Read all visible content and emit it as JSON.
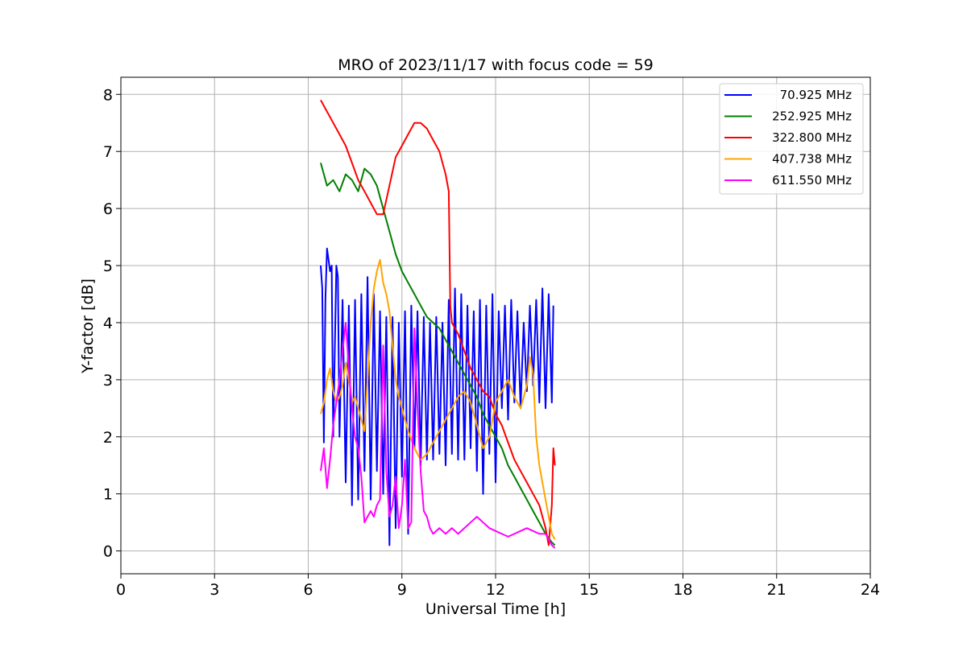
{
  "chart_data": {
    "type": "line",
    "title": "MRO of 2023/11/17 with focus code = 59",
    "xlabel": "Universal Time [h]",
    "ylabel": "Y-factor [dB]",
    "xlim": [
      0,
      24
    ],
    "ylim": [
      -0.4,
      8.3
    ],
    "xticks": [
      0,
      3,
      6,
      9,
      12,
      15,
      18,
      21,
      24
    ],
    "yticks": [
      0,
      1,
      2,
      3,
      4,
      5,
      6,
      7,
      8
    ],
    "grid": true,
    "legend_position": "top-right",
    "series": [
      {
        "name": "70.925 MHz",
        "color": "#0000ff",
        "x": [
          6.4,
          6.45,
          6.5,
          6.55,
          6.6,
          6.65,
          6.7,
          6.75,
          6.8,
          6.9,
          6.95,
          7.0,
          7.1,
          7.2,
          7.3,
          7.4,
          7.5,
          7.6,
          7.7,
          7.8,
          7.9,
          8.0,
          8.1,
          8.2,
          8.3,
          8.4,
          8.5,
          8.6,
          8.7,
          8.8,
          8.9,
          9.0,
          9.1,
          9.2,
          9.3,
          9.4,
          9.5,
          9.6,
          9.7,
          9.8,
          9.9,
          10.0,
          10.1,
          10.2,
          10.3,
          10.4,
          10.5,
          10.6,
          10.7,
          10.8,
          10.9,
          11.0,
          11.1,
          11.2,
          11.3,
          11.4,
          11.5,
          11.6,
          11.7,
          11.8,
          11.9,
          12.0,
          12.1,
          12.2,
          12.3,
          12.4,
          12.5,
          12.6,
          12.7,
          12.8,
          12.9,
          13.0,
          13.1,
          13.2,
          13.3,
          13.4,
          13.5,
          13.6,
          13.7,
          13.8,
          13.85
        ],
        "y": [
          5.0,
          4.6,
          1.9,
          4.4,
          5.3,
          5.1,
          4.9,
          5.0,
          2.0,
          5.0,
          4.8,
          2.0,
          4.4,
          1.2,
          4.3,
          0.8,
          4.4,
          0.9,
          4.5,
          1.4,
          4.8,
          0.9,
          4.5,
          1.4,
          4.2,
          1.0,
          4.1,
          0.1,
          4.1,
          0.4,
          4.0,
          1.3,
          4.2,
          0.3,
          4.3,
          1.8,
          4.2,
          1.5,
          4.1,
          1.6,
          4.0,
          1.6,
          4.1,
          1.7,
          4.0,
          1.5,
          4.4,
          1.7,
          4.6,
          1.6,
          4.5,
          1.6,
          4.3,
          1.8,
          4.2,
          1.4,
          4.4,
          1.0,
          4.3,
          1.7,
          4.5,
          1.2,
          4.2,
          2.5,
          4.3,
          2.3,
          4.4,
          2.6,
          4.2,
          2.5,
          4.0,
          2.8,
          4.3,
          2.9,
          4.4,
          2.6,
          4.6,
          2.5,
          4.5,
          2.6,
          4.3
        ]
      },
      {
        "name": "252.925 MHz",
        "color": "#008000",
        "x": [
          6.4,
          6.6,
          6.8,
          7.0,
          7.2,
          7.4,
          7.6,
          7.8,
          8.0,
          8.2,
          8.4,
          8.6,
          8.8,
          9.0,
          9.2,
          9.4,
          9.6,
          9.8,
          10.0,
          10.2,
          10.4,
          10.6,
          10.8,
          11.0,
          11.2,
          11.4,
          11.6,
          11.8,
          12.0,
          12.2,
          12.4,
          12.6,
          12.8,
          13.0,
          13.2,
          13.4,
          13.6,
          13.8,
          13.9
        ],
        "y": [
          6.8,
          6.4,
          6.5,
          6.3,
          6.6,
          6.5,
          6.3,
          6.7,
          6.6,
          6.4,
          6.0,
          5.6,
          5.2,
          4.9,
          4.7,
          4.5,
          4.3,
          4.1,
          4.0,
          3.9,
          3.7,
          3.5,
          3.3,
          3.1,
          2.9,
          2.7,
          2.4,
          2.2,
          2.0,
          1.8,
          1.5,
          1.3,
          1.1,
          0.9,
          0.7,
          0.5,
          0.3,
          0.15,
          0.1
        ]
      },
      {
        "name": "322.800 MHz",
        "color": "#ff0000",
        "x": [
          6.4,
          6.6,
          6.8,
          7.0,
          7.2,
          7.4,
          7.6,
          7.8,
          8.0,
          8.2,
          8.4,
          8.6,
          8.8,
          9.0,
          9.2,
          9.4,
          9.6,
          9.8,
          10.0,
          10.2,
          10.4,
          10.5,
          10.55,
          10.6,
          10.8,
          11.0,
          11.2,
          11.4,
          11.6,
          11.8,
          12.0,
          12.2,
          12.4,
          12.6,
          12.8,
          13.0,
          13.2,
          13.4,
          13.6,
          13.7,
          13.8,
          13.85,
          13.9
        ],
        "y": [
          7.9,
          7.7,
          7.5,
          7.3,
          7.1,
          6.8,
          6.5,
          6.3,
          6.1,
          5.9,
          5.9,
          6.4,
          6.9,
          7.1,
          7.3,
          7.5,
          7.5,
          7.4,
          7.2,
          7.0,
          6.6,
          6.3,
          4.3,
          4.0,
          3.8,
          3.5,
          3.2,
          3.0,
          2.8,
          2.7,
          2.4,
          2.2,
          1.9,
          1.6,
          1.4,
          1.2,
          1.0,
          0.8,
          0.4,
          0.1,
          0.8,
          1.8,
          1.5
        ]
      },
      {
        "name": "407.738 MHz",
        "color": "#ffa500",
        "x": [
          6.4,
          6.5,
          6.6,
          6.7,
          6.8,
          6.9,
          7.0,
          7.1,
          7.2,
          7.3,
          7.4,
          7.5,
          7.6,
          7.7,
          7.8,
          7.9,
          8.0,
          8.1,
          8.2,
          8.3,
          8.4,
          8.5,
          8.6,
          8.7,
          8.8,
          8.9,
          9.0,
          9.2,
          9.4,
          9.6,
          9.8,
          10.0,
          10.2,
          10.4,
          10.6,
          10.8,
          11.0,
          11.2,
          11.4,
          11.6,
          11.8,
          12.0,
          12.2,
          12.4,
          12.6,
          12.8,
          13.0,
          13.1,
          13.2,
          13.3,
          13.4,
          13.5,
          13.6,
          13.7,
          13.8,
          13.9
        ],
        "y": [
          2.4,
          2.6,
          3.0,
          3.2,
          2.8,
          2.6,
          2.7,
          2.9,
          3.3,
          3.0,
          2.6,
          2.7,
          2.5,
          2.3,
          2.1,
          3.0,
          4.0,
          4.6,
          4.9,
          5.1,
          4.7,
          4.5,
          4.2,
          3.6,
          3.0,
          2.7,
          2.5,
          2.1,
          1.8,
          1.6,
          1.7,
          1.9,
          2.1,
          2.3,
          2.5,
          2.7,
          2.8,
          2.6,
          2.2,
          1.8,
          2.0,
          2.6,
          2.8,
          3.0,
          2.7,
          2.5,
          2.9,
          3.4,
          3.1,
          2.0,
          1.5,
          1.2,
          0.9,
          0.6,
          0.3,
          0.2
        ]
      },
      {
        "name": "611.550 MHz",
        "color": "#ff00ff",
        "x": [
          6.4,
          6.5,
          6.6,
          6.7,
          6.8,
          6.9,
          7.0,
          7.1,
          7.2,
          7.3,
          7.4,
          7.5,
          7.6,
          7.7,
          7.8,
          7.9,
          8.0,
          8.1,
          8.2,
          8.3,
          8.4,
          8.5,
          8.6,
          8.7,
          8.8,
          8.9,
          9.0,
          9.1,
          9.2,
          9.3,
          9.4,
          9.5,
          9.6,
          9.7,
          9.8,
          9.9,
          10.0,
          10.2,
          10.4,
          10.6,
          10.8,
          11.0,
          11.2,
          11.4,
          11.6,
          11.8,
          12.0,
          12.2,
          12.4,
          12.6,
          12.8,
          13.0,
          13.2,
          13.4,
          13.6,
          13.7,
          13.8,
          13.9
        ],
        "y": [
          1.4,
          1.8,
          1.1,
          1.6,
          2.2,
          2.6,
          3.0,
          3.5,
          4.0,
          3.2,
          2.5,
          2.0,
          1.8,
          1.3,
          0.5,
          0.6,
          0.7,
          0.6,
          0.8,
          0.9,
          3.6,
          1.4,
          0.6,
          0.8,
          1.3,
          0.4,
          0.8,
          1.6,
          0.4,
          0.5,
          3.9,
          2.5,
          1.4,
          0.7,
          0.6,
          0.4,
          0.3,
          0.4,
          0.3,
          0.4,
          0.3,
          0.4,
          0.5,
          0.6,
          0.5,
          0.4,
          0.35,
          0.3,
          0.25,
          0.3,
          0.35,
          0.4,
          0.35,
          0.3,
          0.3,
          0.2,
          0.1,
          0.05
        ]
      }
    ]
  }
}
